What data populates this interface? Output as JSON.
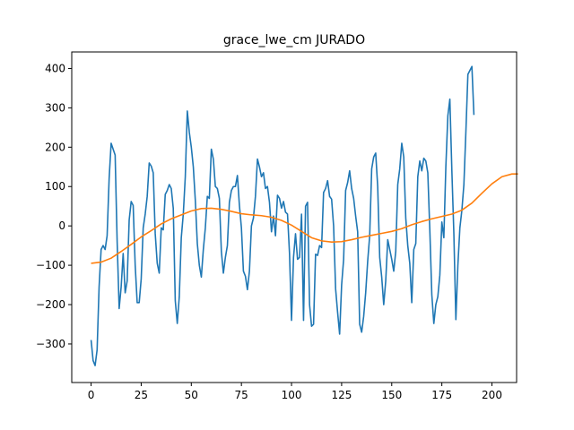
{
  "chart_data": {
    "type": "line",
    "title": "grace_lwe_cm JURADO",
    "xlabel": "",
    "ylabel": "",
    "xlim": [
      -9.65,
      212.3
    ],
    "ylim": [
      -398,
      442
    ],
    "xticks": [
      0,
      25,
      50,
      75,
      100,
      125,
      150,
      175,
      200
    ],
    "yticks": [
      -300,
      -200,
      -100,
      0,
      100,
      200,
      300,
      400
    ],
    "grid": false,
    "legend": "none",
    "colors": {
      "series_1": "#1f77b4",
      "series_2": "#ff7f0e"
    },
    "series": [
      {
        "color": "#1f77b4",
        "points": [
          [
            0,
            -290
          ],
          [
            1,
            -342
          ],
          [
            2,
            -355
          ],
          [
            3,
            -315
          ],
          [
            4,
            -155
          ],
          [
            5,
            -60
          ],
          [
            6,
            -50
          ],
          [
            7,
            -60
          ],
          [
            8,
            -25
          ],
          [
            9,
            120
          ],
          [
            10,
            210
          ],
          [
            11,
            195
          ],
          [
            12,
            180
          ],
          [
            13,
            -40
          ],
          [
            14,
            -210
          ],
          [
            15,
            -155
          ],
          [
            16,
            -70
          ],
          [
            17,
            -170
          ],
          [
            18,
            -140
          ],
          [
            19,
            15
          ],
          [
            20,
            62
          ],
          [
            21,
            52
          ],
          [
            22,
            -100
          ],
          [
            23,
            -195
          ],
          [
            24,
            -195
          ],
          [
            25,
            -135
          ],
          [
            26,
            -5
          ],
          [
            27,
            30
          ],
          [
            28,
            75
          ],
          [
            29,
            160
          ],
          [
            30,
            152
          ],
          [
            31,
            135
          ],
          [
            32,
            -20
          ],
          [
            33,
            -95
          ],
          [
            34,
            -120
          ],
          [
            35,
            -5
          ],
          [
            36,
            -10
          ],
          [
            37,
            80
          ],
          [
            38,
            90
          ],
          [
            39,
            105
          ],
          [
            40,
            95
          ],
          [
            41,
            45
          ],
          [
            42,
            -190
          ],
          [
            43,
            -248
          ],
          [
            44,
            -180
          ],
          [
            45,
            -30
          ],
          [
            46,
            30
          ],
          [
            47,
            125
          ],
          [
            48,
            292
          ],
          [
            49,
            238
          ],
          [
            50,
            200
          ],
          [
            51,
            150
          ],
          [
            52,
            65
          ],
          [
            53,
            -45
          ],
          [
            54,
            -100
          ],
          [
            55,
            -130
          ],
          [
            56,
            -60
          ],
          [
            57,
            -5
          ],
          [
            58,
            75
          ],
          [
            59,
            70
          ],
          [
            60,
            195
          ],
          [
            61,
            170
          ],
          [
            62,
            100
          ],
          [
            63,
            95
          ],
          [
            64,
            70
          ],
          [
            65,
            -65
          ],
          [
            66,
            -120
          ],
          [
            67,
            -80
          ],
          [
            68,
            -50
          ],
          [
            69,
            60
          ],
          [
            70,
            90
          ],
          [
            71,
            100
          ],
          [
            72,
            100
          ],
          [
            73,
            128
          ],
          [
            74,
            52
          ],
          [
            75,
            -5
          ],
          [
            76,
            -115
          ],
          [
            77,
            -128
          ],
          [
            78,
            -162
          ],
          [
            79,
            -115
          ],
          [
            80,
            0
          ],
          [
            81,
            20
          ],
          [
            82,
            75
          ],
          [
            83,
            170
          ],
          [
            84,
            150
          ],
          [
            85,
            125
          ],
          [
            86,
            135
          ],
          [
            87,
            95
          ],
          [
            88,
            100
          ],
          [
            89,
            60
          ],
          [
            90,
            -15
          ],
          [
            91,
            25
          ],
          [
            92,
            -25
          ],
          [
            93,
            78
          ],
          [
            94,
            70
          ],
          [
            95,
            45
          ],
          [
            96,
            62
          ],
          [
            97,
            35
          ],
          [
            98,
            30
          ],
          [
            99,
            -70
          ],
          [
            100,
            -240
          ],
          [
            101,
            -80
          ],
          [
            102,
            -20
          ],
          [
            103,
            -85
          ],
          [
            104,
            -80
          ],
          [
            105,
            30
          ],
          [
            106,
            -240
          ],
          [
            107,
            50
          ],
          [
            108,
            60
          ],
          [
            109,
            -200
          ],
          [
            110,
            -255
          ],
          [
            111,
            -250
          ],
          [
            112,
            -72
          ],
          [
            113,
            -75
          ],
          [
            114,
            -50
          ],
          [
            115,
            -55
          ],
          [
            116,
            85
          ],
          [
            117,
            95
          ],
          [
            118,
            115
          ],
          [
            119,
            75
          ],
          [
            120,
            68
          ],
          [
            121,
            0
          ],
          [
            122,
            -160
          ],
          [
            123,
            -220
          ],
          [
            124,
            -275
          ],
          [
            125,
            -150
          ],
          [
            126,
            -85
          ],
          [
            127,
            90
          ],
          [
            128,
            110
          ],
          [
            129,
            140
          ],
          [
            130,
            95
          ],
          [
            131,
            70
          ],
          [
            132,
            25
          ],
          [
            133,
            -15
          ],
          [
            134,
            -250
          ],
          [
            135,
            -270
          ],
          [
            136,
            -230
          ],
          [
            137,
            -170
          ],
          [
            138,
            -90
          ],
          [
            139,
            -25
          ],
          [
            140,
            145
          ],
          [
            141,
            175
          ],
          [
            142,
            185
          ],
          [
            143,
            100
          ],
          [
            144,
            -80
          ],
          [
            145,
            -130
          ],
          [
            146,
            -200
          ],
          [
            147,
            -140
          ],
          [
            148,
            -35
          ],
          [
            149,
            -60
          ],
          [
            150,
            -85
          ],
          [
            151,
            -115
          ],
          [
            152,
            -65
          ],
          [
            153,
            105
          ],
          [
            154,
            145
          ],
          [
            155,
            210
          ],
          [
            156,
            175
          ],
          [
            157,
            20
          ],
          [
            158,
            -50
          ],
          [
            159,
            -95
          ],
          [
            160,
            -195
          ],
          [
            161,
            -60
          ],
          [
            162,
            -45
          ],
          [
            163,
            125
          ],
          [
            164,
            165
          ],
          [
            165,
            140
          ],
          [
            166,
            172
          ],
          [
            167,
            165
          ],
          [
            168,
            135
          ],
          [
            169,
            -10
          ],
          [
            170,
            -175
          ],
          [
            171,
            -248
          ],
          [
            172,
            -200
          ],
          [
            173,
            -180
          ],
          [
            174,
            -125
          ],
          [
            175,
            10
          ],
          [
            176,
            -30
          ],
          [
            177,
            150
          ],
          [
            178,
            280
          ],
          [
            179,
            322
          ],
          [
            180,
            140
          ],
          [
            181,
            -20
          ],
          [
            182,
            -238
          ],
          [
            183,
            -100
          ],
          [
            184,
            -5
          ],
          [
            185,
            40
          ],
          [
            186,
            105
          ],
          [
            187,
            240
          ],
          [
            188,
            385
          ],
          [
            189,
            395
          ],
          [
            190,
            405
          ],
          [
            191,
            282
          ]
        ]
      },
      {
        "color": "#ff7f0e",
        "points": [
          [
            0,
            -95
          ],
          [
            5,
            -92
          ],
          [
            10,
            -82
          ],
          [
            15,
            -65
          ],
          [
            20,
            -47
          ],
          [
            25,
            -28
          ],
          [
            30,
            -12
          ],
          [
            35,
            5
          ],
          [
            40,
            18
          ],
          [
            45,
            28
          ],
          [
            50,
            38
          ],
          [
            55,
            44
          ],
          [
            60,
            45
          ],
          [
            65,
            42
          ],
          [
            70,
            37
          ],
          [
            75,
            31
          ],
          [
            80,
            28
          ],
          [
            85,
            26
          ],
          [
            90,
            22
          ],
          [
            95,
            14
          ],
          [
            100,
            2
          ],
          [
            105,
            -14
          ],
          [
            110,
            -30
          ],
          [
            115,
            -38
          ],
          [
            120,
            -41
          ],
          [
            125,
            -40
          ],
          [
            130,
            -35
          ],
          [
            135,
            -29
          ],
          [
            140,
            -24
          ],
          [
            145,
            -19
          ],
          [
            150,
            -14
          ],
          [
            155,
            -7
          ],
          [
            160,
            3
          ],
          [
            165,
            11
          ],
          [
            170,
            18
          ],
          [
            175,
            24
          ],
          [
            180,
            30
          ],
          [
            185,
            40
          ],
          [
            190,
            58
          ],
          [
            195,
            83
          ],
          [
            200,
            107
          ],
          [
            205,
            125
          ],
          [
            210,
            132
          ],
          [
            213,
            132
          ]
        ]
      }
    ]
  }
}
